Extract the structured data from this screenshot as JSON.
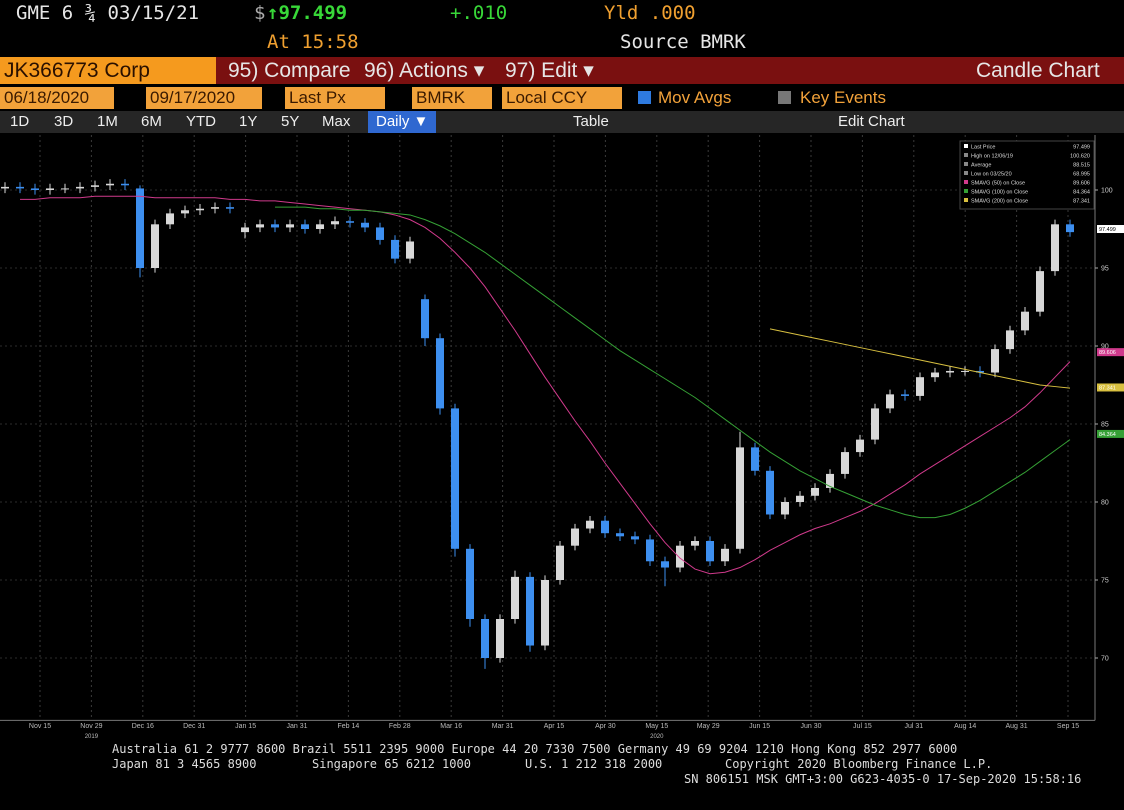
{
  "header": {
    "ticker": "GME 6 ¾ 03/15/21",
    "currency": "$",
    "price": "↑97.499",
    "change": "+.010",
    "yield": "Yld .000",
    "time": "At 15:58",
    "source": "Source BMRK"
  },
  "menu": {
    "security": "JK366773 Corp",
    "compare": "95) Compare",
    "actions": "96) Actions ▾",
    "edit": "97) Edit ▾",
    "view": "Candle Chart"
  },
  "controls": {
    "start": "06/18/2020",
    "end": "09/17/2020",
    "field": "Last Px",
    "source": "BMRK",
    "currency": "Local CCY",
    "mov_avgs": "Mov Avgs",
    "key_events": "Key Events"
  },
  "toolbar": {
    "ranges": [
      "1D",
      "3D",
      "1M",
      "6M",
      "YTD",
      "1Y",
      "5Y",
      "Max"
    ],
    "period": "Daily ▼",
    "table": "Table",
    "edit_chart": "Edit Chart"
  },
  "chart_data": {
    "type": "candlestick",
    "up_color": "#d8d8d8",
    "down_color": "#3d8ff0",
    "candles": {
      "open": [
        100.1,
        100.2,
        100.1,
        100.0,
        100.1,
        100.1,
        100.2,
        100.3,
        100.4,
        100.1,
        95.0,
        97.8,
        98.5,
        98.7,
        98.8,
        98.9,
        97.3,
        97.6,
        97.8,
        97.6,
        97.8,
        97.5,
        97.8,
        98.0,
        97.9,
        97.6,
        96.8,
        95.6,
        93.0,
        90.5,
        86.0,
        77.0,
        72.5,
        70.0,
        72.5,
        75.2,
        70.8,
        75.0,
        77.2,
        78.3,
        78.8,
        78.0,
        77.8,
        77.6,
        76.2,
        75.8,
        77.2,
        77.5,
        76.2,
        77.0,
        83.5,
        82.0,
        79.2,
        80.0,
        80.4,
        80.9,
        81.8,
        83.2,
        84.0,
        86.0,
        86.9,
        86.8,
        88.0,
        88.3,
        88.4,
        88.4,
        88.3,
        89.8,
        91.0,
        92.2,
        94.8,
        97.8
      ],
      "high": [
        100.5,
        100.5,
        100.4,
        100.4,
        100.4,
        100.5,
        100.6,
        100.7,
        100.7,
        100.3,
        98.1,
        98.8,
        99.0,
        99.1,
        99.2,
        99.2,
        97.9,
        98.1,
        98.1,
        98.1,
        98.1,
        98.1,
        98.3,
        98.3,
        98.2,
        97.9,
        97.1,
        97.0,
        93.3,
        90.8,
        86.3,
        77.3,
        72.8,
        72.8,
        75.6,
        75.5,
        75.3,
        77.5,
        78.6,
        79.1,
        79.1,
        78.3,
        78.1,
        77.9,
        76.5,
        77.5,
        77.8,
        77.8,
        77.3,
        84.5,
        83.8,
        82.3,
        80.3,
        80.7,
        81.2,
        82.1,
        83.5,
        84.3,
        86.3,
        87.2,
        87.2,
        88.3,
        88.6,
        88.7,
        88.7,
        88.7,
        90.1,
        91.3,
        92.5,
        95.1,
        98.1,
        98.1
      ],
      "low": [
        99.8,
        99.8,
        99.7,
        99.7,
        99.8,
        99.8,
        99.9,
        100.0,
        100.0,
        94.4,
        94.7,
        97.5,
        98.2,
        98.4,
        98.5,
        98.5,
        96.9,
        97.3,
        97.3,
        97.3,
        97.2,
        97.2,
        97.5,
        97.6,
        97.3,
        96.5,
        95.3,
        95.3,
        90.0,
        85.6,
        76.5,
        72.0,
        69.3,
        69.7,
        72.2,
        70.4,
        70.5,
        74.7,
        76.9,
        78.0,
        77.7,
        77.5,
        77.3,
        75.9,
        74.6,
        75.5,
        76.9,
        75.9,
        75.9,
        76.7,
        81.7,
        78.9,
        78.9,
        79.7,
        80.1,
        80.6,
        81.5,
        82.9,
        83.7,
        85.7,
        86.5,
        86.5,
        87.7,
        88.0,
        88.1,
        88.0,
        88.0,
        89.5,
        90.7,
        91.9,
        94.5,
        97.0
      ],
      "close": [
        100.2,
        100.1,
        100.0,
        100.1,
        100.1,
        100.2,
        100.3,
        100.4,
        100.3,
        95.0,
        97.8,
        98.5,
        98.7,
        98.8,
        98.9,
        98.8,
        97.6,
        97.8,
        97.6,
        97.8,
        97.5,
        97.8,
        98.0,
        97.9,
        97.6,
        96.8,
        95.6,
        96.7,
        90.5,
        86.0,
        77.0,
        72.5,
        70.0,
        72.5,
        75.2,
        70.8,
        75.0,
        77.2,
        78.3,
        78.8,
        78.0,
        77.8,
        77.6,
        76.2,
        75.8,
        77.2,
        77.5,
        76.2,
        77.0,
        83.5,
        82.0,
        79.2,
        80.0,
        80.4,
        80.9,
        81.8,
        83.2,
        84.0,
        86.0,
        86.9,
        86.8,
        88.0,
        88.3,
        88.4,
        88.4,
        88.3,
        89.8,
        91.0,
        92.2,
        94.8,
        97.8,
        97.3
      ]
    },
    "series": [
      {
        "color": "#d03a8c",
        "values": [
          null,
          99.4,
          99.4,
          99.5,
          99.5,
          99.5,
          99.6,
          99.6,
          99.6,
          99.6,
          99.5,
          99.5,
          99.5,
          99.5,
          99.5,
          99.4,
          99.4,
          99.3,
          99.3,
          99.2,
          99.1,
          99.0,
          98.9,
          98.8,
          98.7,
          98.6,
          98.4,
          98.1,
          97.6,
          96.9,
          96.0,
          95.0,
          93.8,
          92.4,
          91.0,
          89.5,
          88.0,
          86.6,
          85.2,
          83.9,
          82.5,
          81.2,
          79.9,
          78.6,
          77.4,
          76.4,
          75.7,
          75.4,
          75.5,
          75.8,
          76.3,
          76.9,
          77.4,
          77.9,
          78.3,
          78.6,
          79.0,
          79.4,
          79.9,
          80.5,
          81.1,
          81.8,
          82.4,
          83.0,
          83.6,
          84.2,
          84.8,
          85.4,
          86.1,
          87.0,
          88.0,
          89.0
        ]
      },
      {
        "color": "#35a035",
        "values": [
          null,
          null,
          null,
          null,
          null,
          null,
          null,
          null,
          null,
          null,
          null,
          null,
          null,
          null,
          null,
          null,
          null,
          null,
          98.9,
          98.9,
          98.9,
          98.8,
          98.8,
          98.7,
          98.7,
          98.6,
          98.5,
          98.4,
          98.1,
          97.7,
          97.2,
          96.6,
          96.0,
          95.3,
          94.6,
          93.9,
          93.2,
          92.5,
          91.8,
          91.1,
          90.4,
          89.7,
          89.1,
          88.5,
          87.9,
          87.3,
          86.7,
          86.0,
          85.3,
          84.6,
          83.9,
          83.2,
          82.6,
          82.0,
          81.5,
          81.0,
          80.6,
          80.2,
          79.8,
          79.5,
          79.2,
          79.0,
          79.0,
          79.2,
          79.6,
          80.1,
          80.7,
          81.3,
          81.9,
          82.6,
          83.3,
          84.0
        ]
      },
      {
        "color": "#d8c040",
        "values": [
          null,
          null,
          null,
          null,
          null,
          null,
          null,
          null,
          null,
          null,
          null,
          null,
          null,
          null,
          null,
          null,
          null,
          null,
          null,
          null,
          null,
          null,
          null,
          null,
          null,
          null,
          null,
          null,
          null,
          null,
          null,
          null,
          null,
          null,
          null,
          null,
          null,
          null,
          null,
          null,
          null,
          null,
          null,
          null,
          null,
          null,
          null,
          null,
          null,
          null,
          null,
          91.1,
          90.9,
          90.7,
          90.5,
          90.3,
          90.1,
          89.9,
          89.7,
          89.5,
          89.3,
          89.1,
          88.9,
          88.7,
          88.5,
          88.3,
          88.1,
          87.9,
          87.7,
          87.5,
          87.4,
          87.3
        ]
      }
    ],
    "ylim": [
      66,
      103
    ],
    "yticks": [
      70,
      75,
      80,
      85,
      90,
      95,
      100
    ],
    "grid": true,
    "xlabels": [
      {
        "label": "Nov 15"
      },
      {
        "label": "Nov 29",
        "year": "2019"
      },
      {
        "label": "Dec 16"
      },
      {
        "label": "Dec 31"
      },
      {
        "label": "Jan 15"
      },
      {
        "label": "Jan 31"
      },
      {
        "label": "Feb 14"
      },
      {
        "label": "Feb 28"
      },
      {
        "label": "Mar 16"
      },
      {
        "label": "Mar 31"
      },
      {
        "label": "Apr 15"
      },
      {
        "label": "Apr 30"
      },
      {
        "label": "May 15",
        "year": "2020"
      },
      {
        "label": "May 29"
      },
      {
        "label": "Jun 15"
      },
      {
        "label": "Jun 30"
      },
      {
        "label": "Jul 15"
      },
      {
        "label": "Jul 31"
      },
      {
        "label": "Aug 14"
      },
      {
        "label": "Aug 31"
      },
      {
        "label": "Sep 15"
      }
    ],
    "legend": [
      {
        "name": "Last Price",
        "value": 97.499,
        "value_label": "97.499",
        "color": "#ffffff",
        "tag": true
      },
      {
        "name": "High on 12/06/19",
        "value": 100.62,
        "value_label": "100.620",
        "color": "#888888",
        "tag": false
      },
      {
        "name": "Average",
        "value": 88.515,
        "value_label": "88.515",
        "color": "#888888",
        "tag": false
      },
      {
        "name": "Low on 03/25/20",
        "value": 68.995,
        "value_label": "68.995",
        "color": "#888888",
        "tag": false
      },
      {
        "name": "SMAVG (50)  on Close",
        "value": 89.606,
        "value_label": "89.606",
        "color": "#d03a8c",
        "tag": true
      },
      {
        "name": "SMAVG (100)  on Close",
        "value": 84.364,
        "value_label": "84.364",
        "color": "#35a035",
        "tag": true
      },
      {
        "name": "SMAVG (200)  on Close",
        "value": 87.341,
        "value_label": "87.341",
        "color": "#d8c040",
        "tag": true
      }
    ]
  },
  "footer": {
    "line1": "Australia 61 2 9777 8600 Brazil 5511 2395 9000 Europe 44 20 7330 7500 Germany 49 69 9204 1210 Hong Kong 852 2977 6000",
    "japan": "Japan 81 3 4565 8900",
    "singapore": "Singapore 65 6212 1000",
    "us": "U.S. 1 212 318 2000",
    "copyright": "Copyright 2020 Bloomberg Finance L.P.",
    "session": "SN 806151 MSK  GMT+3:00 G623-4035-0 17-Sep-2020 15:58:16"
  }
}
